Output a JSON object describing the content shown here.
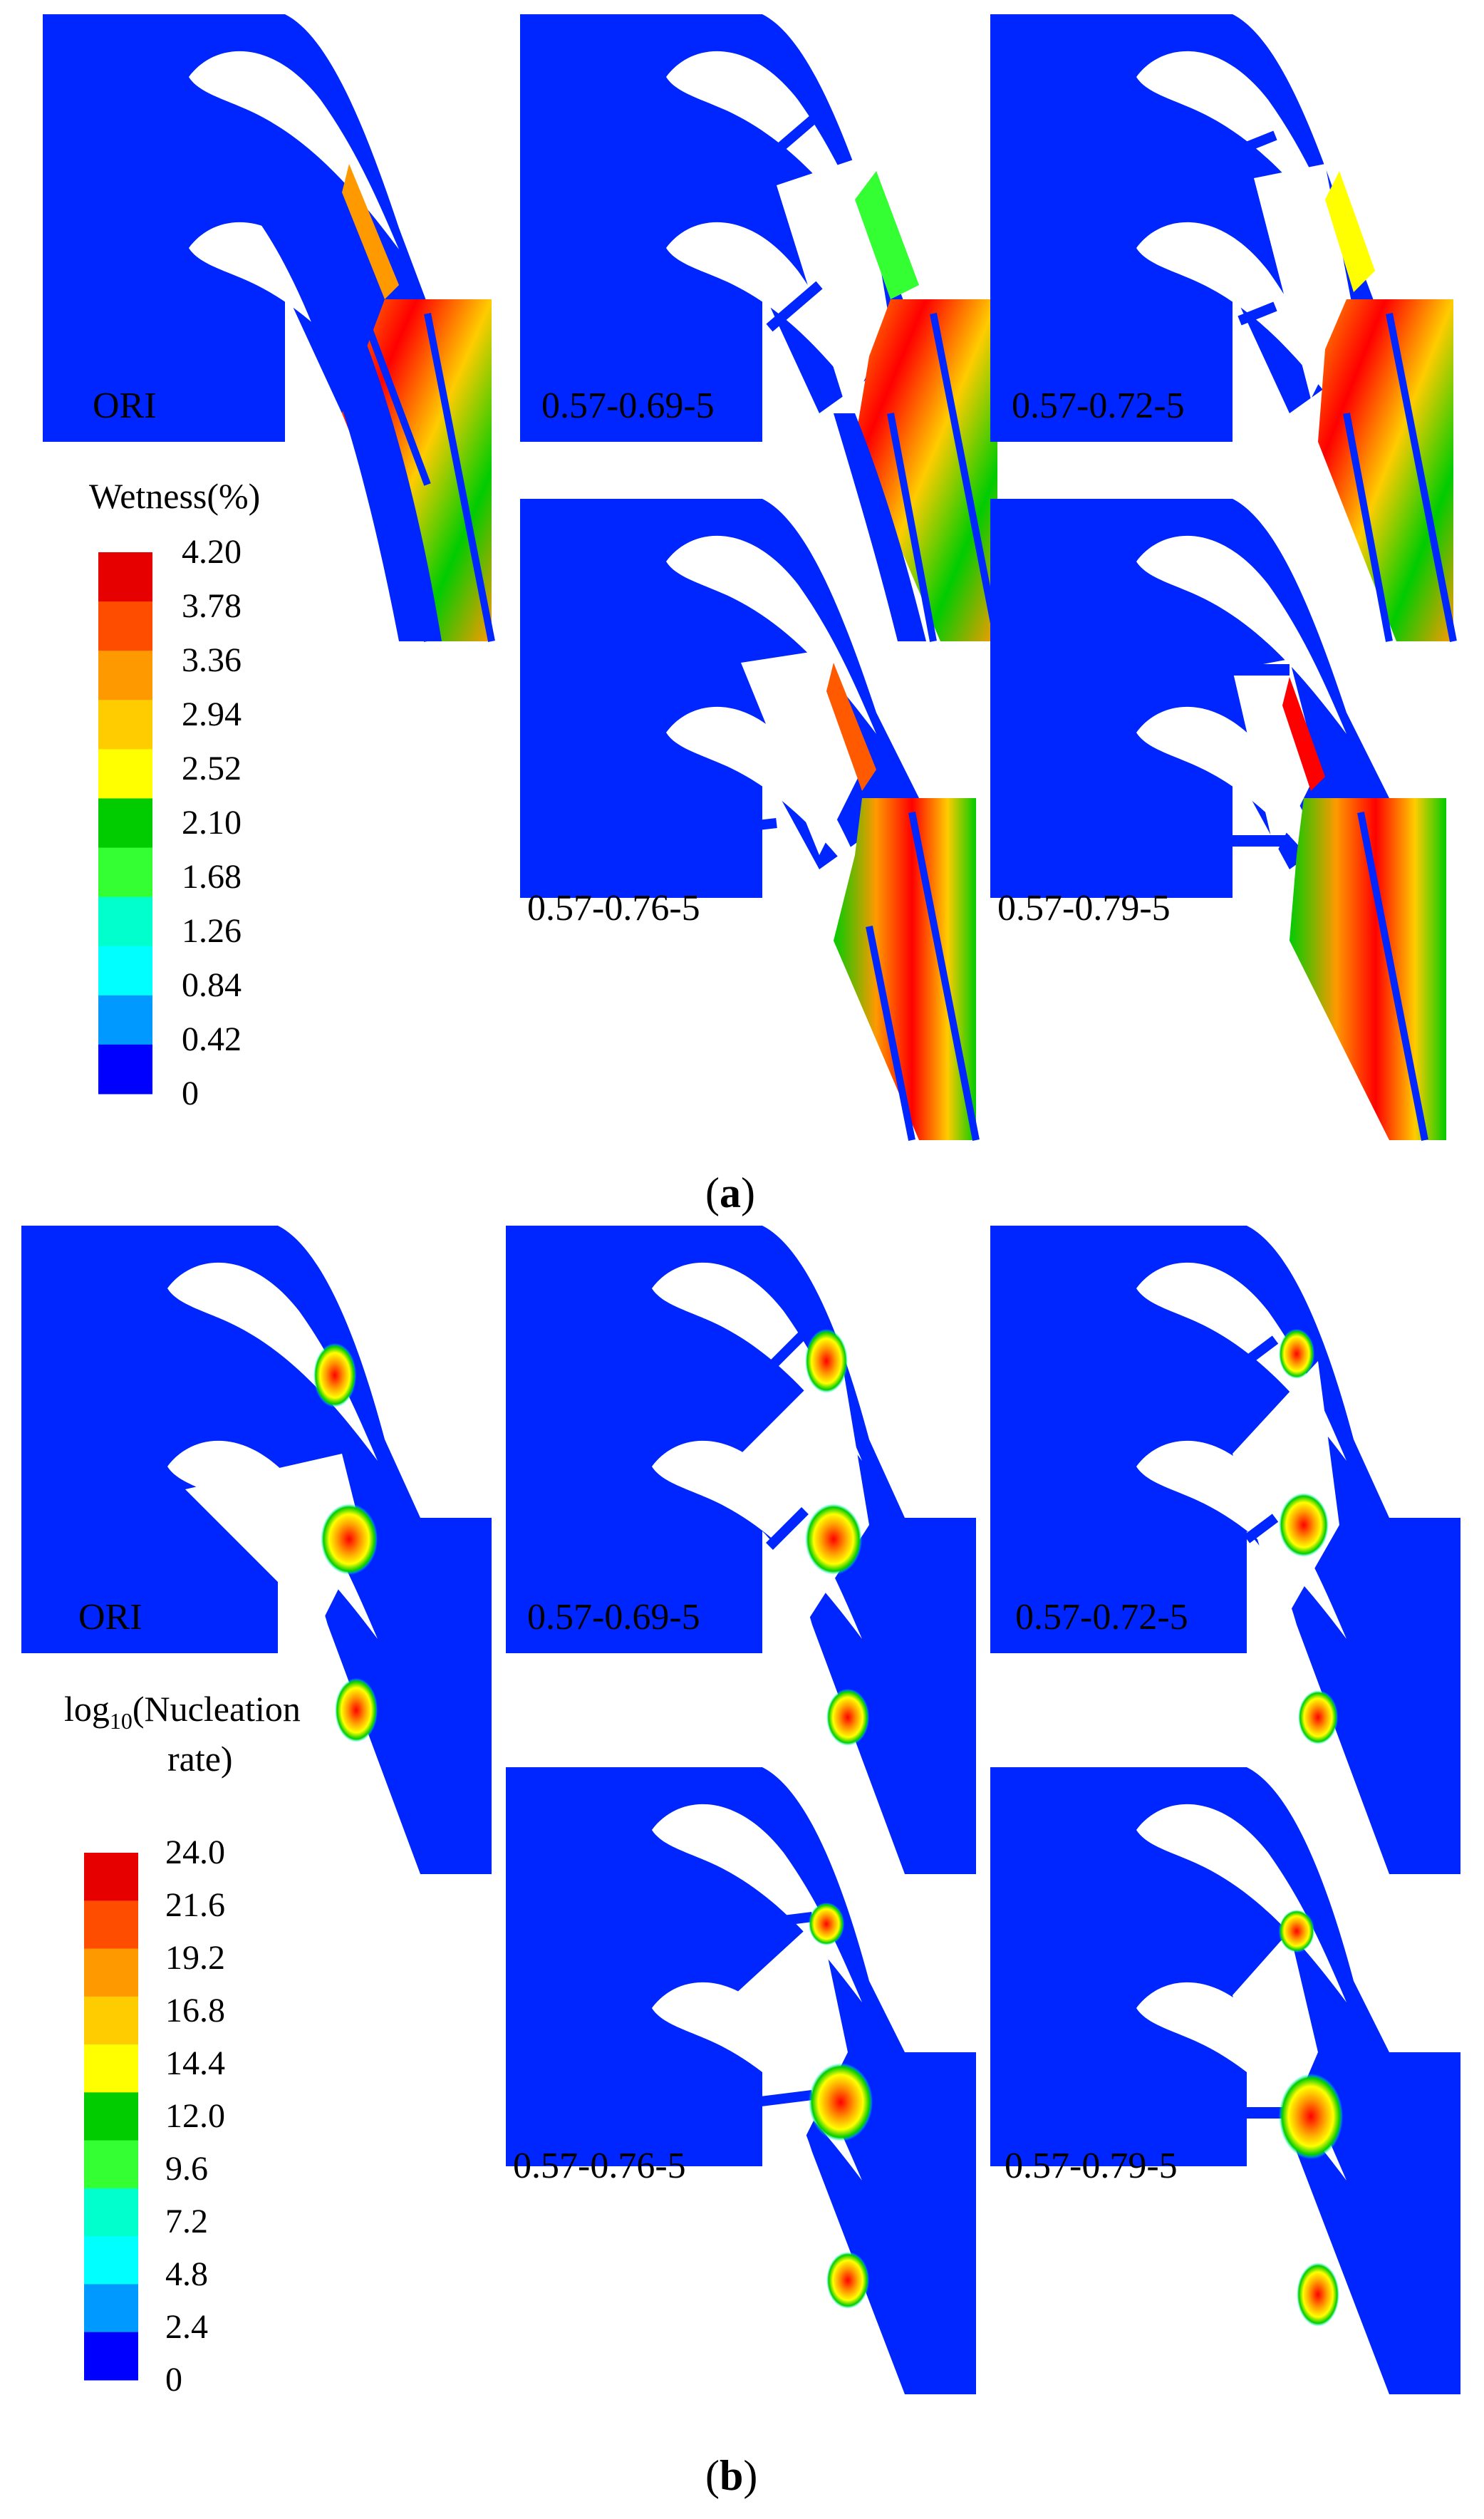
{
  "colors": {
    "background_flow": "#0026ff",
    "blade": "#ffffff",
    "contour_scale": [
      "#ff0000",
      "#ff5a00",
      "#ffa000",
      "#ffff00",
      "#16d000",
      "#00e676",
      "#00ffff",
      "#0096ff",
      "#0026ff"
    ]
  },
  "panel_a": {
    "part_label": "a",
    "legend": {
      "title": "Wetness(%)",
      "ticks": [
        "4.20",
        "3.78",
        "3.36",
        "2.94",
        "2.52",
        "2.10",
        "1.68",
        "1.26",
        "0.84",
        "0.42",
        "0"
      ],
      "colors": [
        "#e60000",
        "#ff4d00",
        "#ff9900",
        "#ffcc00",
        "#ffff00",
        "#00cc00",
        "#33ff33",
        "#00ffcc",
        "#00ffff",
        "#0099ff",
        "#0000ff"
      ]
    },
    "cases": [
      {
        "label": "ORI"
      },
      {
        "label": "0.57-0.69-5"
      },
      {
        "label": "0.57-0.72-5"
      },
      {
        "label": "0.57-0.76-5"
      },
      {
        "label": "0.57-0.79-5"
      }
    ]
  },
  "panel_b": {
    "part_label": "b",
    "legend": {
      "title_prefix": "log",
      "title_sub": "10",
      "title_rest": "(Nucleation",
      "title_line2": "rate)",
      "ticks": [
        "24.0",
        "21.6",
        "19.2",
        "16.8",
        "14.4",
        "12.0",
        "9.6",
        "7.2",
        "4.8",
        "2.4",
        "0"
      ],
      "colors": [
        "#e60000",
        "#ff4d00",
        "#ff9900",
        "#ffcc00",
        "#ffff00",
        "#00cc00",
        "#33ff33",
        "#00ffcc",
        "#00ffff",
        "#0099ff",
        "#0000ff"
      ]
    },
    "cases": [
      {
        "label": "ORI"
      },
      {
        "label": "0.57-0.69-5"
      },
      {
        "label": "0.57-0.72-5"
      },
      {
        "label": "0.57-0.76-5"
      },
      {
        "label": "0.57-0.79-5"
      }
    ]
  }
}
